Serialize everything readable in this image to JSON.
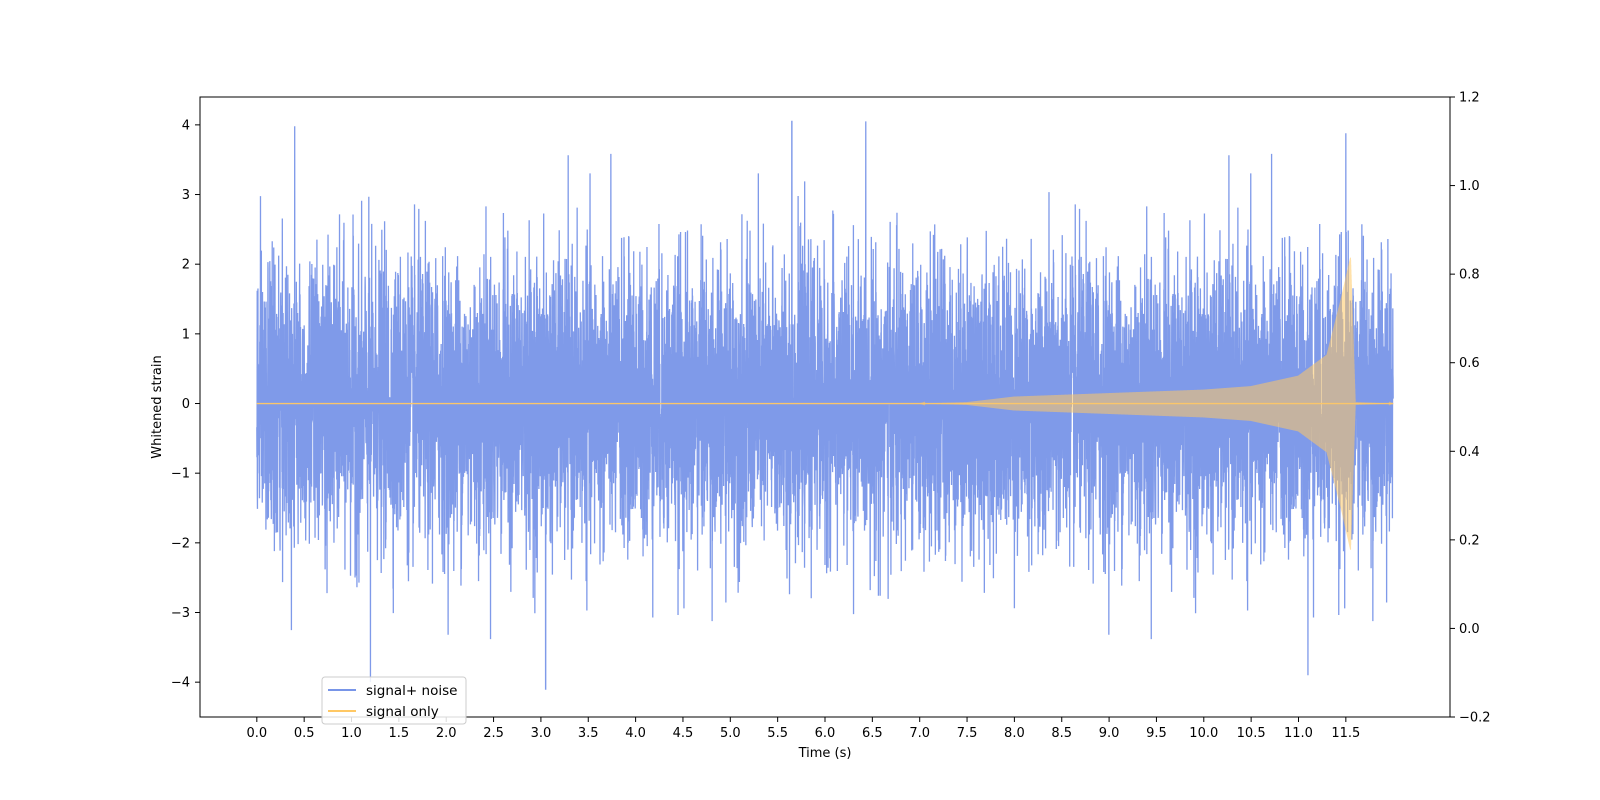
{
  "chart_data": {
    "type": "line",
    "title": "",
    "xlabel": "Time (s)",
    "ylabel": "Whitened strain",
    "ylabel_right": "",
    "xlim": [
      -0.6,
      12.6
    ],
    "ylim": [
      -4.5,
      4.4
    ],
    "ylim_right": [
      -0.2,
      1.2
    ],
    "x_ticks": [
      0.0,
      0.5,
      1.0,
      1.5,
      2.0,
      2.5,
      3.0,
      3.5,
      4.0,
      4.5,
      5.0,
      5.5,
      6.0,
      6.5,
      7.0,
      7.5,
      8.0,
      8.5,
      9.0,
      9.5,
      10.0,
      10.5,
      11.0,
      11.5
    ],
    "x_tick_labels": [
      "0.0",
      "0.5",
      "1.0",
      "1.5",
      "2.0",
      "2.5",
      "3.0",
      "3.5",
      "4.0",
      "4.5",
      "5.0",
      "5.5",
      "6.0",
      "6.5",
      "7.0",
      "7.5",
      "8.0",
      "8.5",
      "9.0",
      "9.5",
      "10.0",
      "10.5",
      "11.0",
      "11.5"
    ],
    "y_ticks": [
      -4,
      -3,
      -2,
      -1,
      0,
      1,
      2,
      3,
      4
    ],
    "y_tick_labels": [
      "−4",
      "−3",
      "−2",
      "−1",
      "0",
      "1",
      "2",
      "3",
      "4"
    ],
    "y_ticks_right": [
      -0.2,
      0.0,
      0.2,
      0.4,
      0.6,
      0.8,
      1.0,
      1.2
    ],
    "y_tick_labels_right": [
      "−0.2",
      "0.0",
      "0.2",
      "0.4",
      "0.6",
      "0.8",
      "1.0",
      "1.2"
    ],
    "grid": false,
    "legend_placement": "lower-left",
    "series": [
      {
        "name": "signal+ noise",
        "color": "#7895e8",
        "x_range": [
          0.0,
          12.0
        ],
        "value_range": [
          -4.1,
          4.05
        ],
        "typical_band": [
          -2.0,
          2.0
        ],
        "notable_peaks": [
          {
            "x": 0.4,
            "y": 3.98
          },
          {
            "x": 5.65,
            "y": 4.05
          },
          {
            "x": 11.5,
            "y": 3.88
          },
          {
            "x": 3.05,
            "y": -4.1
          },
          {
            "x": 1.2,
            "y": -4.0
          },
          {
            "x": 11.1,
            "y": -3.9
          }
        ]
      },
      {
        "name": "signal only",
        "color": "#ffc864",
        "x_range": [
          0.0,
          12.0
        ],
        "envelope": [
          {
            "x": 0.0,
            "amp": 0.0
          },
          {
            "x": 7.0,
            "amp": 0.0
          },
          {
            "x": 7.5,
            "amp": 0.02
          },
          {
            "x": 8.0,
            "amp": 0.1
          },
          {
            "x": 9.0,
            "amp": 0.15
          },
          {
            "x": 10.0,
            "amp": 0.2
          },
          {
            "x": 10.5,
            "amp": 0.25
          },
          {
            "x": 11.0,
            "amp": 0.4
          },
          {
            "x": 11.3,
            "amp": 0.7
          },
          {
            "x": 11.45,
            "amp": 1.5
          },
          {
            "x": 11.55,
            "amp": 2.1
          },
          {
            "x": 11.6,
            "amp": 0.02
          },
          {
            "x": 12.0,
            "amp": 0.0
          }
        ]
      }
    ]
  }
}
